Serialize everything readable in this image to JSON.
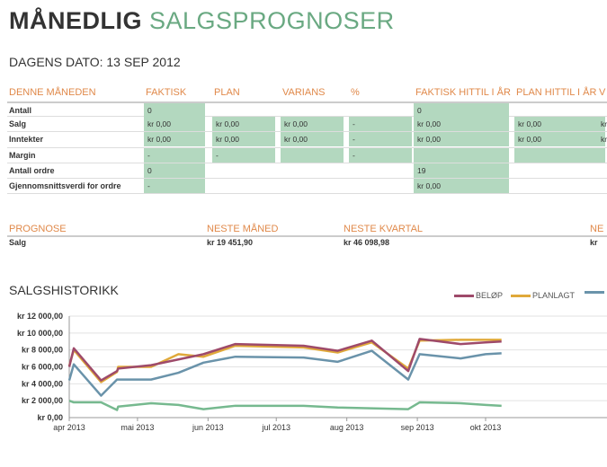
{
  "title": {
    "part1": "MÅNEDLIG",
    "part2": "SALGSPROGNOSER"
  },
  "date_label": "DAGENS DATO: 13 SEP 2012",
  "month_table": {
    "headers": [
      "DENNE MÅNEDEN",
      "FAKTISK",
      "PLAN",
      "VARIANS",
      "%",
      "FAKTISK HITTIL I ÅR",
      "PLAN HITTIL I ÅR",
      "V"
    ],
    "rows": [
      {
        "label": "Antall",
        "cells": [
          "0",
          "",
          "",
          "",
          "0",
          "",
          ""
        ]
      },
      {
        "label": "Salg",
        "cells": [
          "kr 0,00",
          "kr 0,00",
          "kr 0,00",
          "-",
          "kr 0,00",
          "kr 0,00",
          "kr"
        ]
      },
      {
        "label": "Inntekter",
        "cells": [
          "kr 0,00",
          "kr 0,00",
          "kr 0,00",
          "-",
          "kr 0,00",
          "kr 0,00",
          "kr"
        ]
      },
      {
        "label": "Margin",
        "cells": [
          "-",
          "-",
          "",
          "-",
          "",
          "",
          ""
        ]
      },
      {
        "label": "Antall ordre",
        "cells": [
          "0",
          "",
          "",
          "",
          "19",
          "",
          ""
        ]
      },
      {
        "label": "Gjennomsnittsverdi for ordre",
        "cells": [
          "-",
          "",
          "",
          "",
          "kr 0,00",
          "",
          ""
        ]
      }
    ]
  },
  "forecast": {
    "headers": [
      "PROGNOSE",
      "NESTE MÅNED",
      "NESTE KVARTAL",
      "NE"
    ],
    "row": {
      "label": "Salg",
      "values": [
        "kr 19 451,90",
        "kr 46 098,98",
        "kr"
      ]
    }
  },
  "chart_data": {
    "type": "line",
    "title": "SALGSHISTORIKK",
    "x_unit": "days since 1 apr 2013",
    "xlim": [
      0,
      190
    ],
    "ylim": [
      0,
      12000
    ],
    "y_ticks": [
      0,
      2000,
      4000,
      6000,
      8000,
      10000,
      12000
    ],
    "y_tick_labels": [
      "kr  0,00",
      "kr 2 000,00",
      "kr 4 000,00",
      "kr 6 000,00",
      "kr 8 000,00",
      "kr 10 000,00",
      "kr 12 000,00"
    ],
    "x_ticks": [
      0,
      30,
      61,
      91,
      122,
      153,
      183
    ],
    "x_tick_labels": [
      "apr 2013",
      "mai 2013",
      "jun 2013",
      "jul 2013",
      "aug 2013",
      "sep 2013",
      "okt 2013"
    ],
    "series": [
      {
        "name": "BELØP",
        "color": "#9e4a6a",
        "x": [
          0,
          2,
          14,
          21,
          21.5,
          36,
          59,
          73,
          103,
          118,
          133,
          149,
          154,
          172,
          183,
          190
        ],
        "y": [
          6000,
          8200,
          4400,
          5500,
          5800,
          6200,
          7500,
          8700,
          8500,
          7900,
          9100,
          5500,
          9300,
          8700,
          8900,
          9000
        ]
      },
      {
        "name": "PLANLAGT",
        "color": "#e0a93a",
        "x": [
          0,
          2,
          14,
          21,
          21.5,
          36,
          48,
          59,
          73,
          103,
          118,
          133,
          149,
          154,
          172,
          183,
          190
        ],
        "y": [
          6100,
          8000,
          4200,
          5400,
          6000,
          6000,
          7500,
          7200,
          8500,
          8300,
          7700,
          8900,
          5800,
          9100,
          9200,
          9200,
          9200
        ]
      },
      {
        "name": "",
        "color": "#6a93aa",
        "x": [
          0,
          2,
          14,
          21,
          36,
          48,
          59,
          73,
          103,
          118,
          133,
          149,
          154,
          172,
          183,
          190
        ],
        "y": [
          4400,
          6300,
          2600,
          4500,
          4500,
          5300,
          6500,
          7200,
          7100,
          6600,
          7900,
          4500,
          7500,
          7000,
          7500,
          7600
        ]
      },
      {
        "name": "",
        "color": "#76b98f",
        "x": [
          0,
          2,
          14,
          21,
          21.5,
          36,
          48,
          59,
          73,
          103,
          118,
          149,
          154,
          172,
          183,
          190
        ],
        "y": [
          2000,
          1800,
          1800,
          900,
          1300,
          1700,
          1500,
          1000,
          1400,
          1400,
          1200,
          1000,
          1800,
          1700,
          1500,
          1400
        ]
      }
    ]
  }
}
